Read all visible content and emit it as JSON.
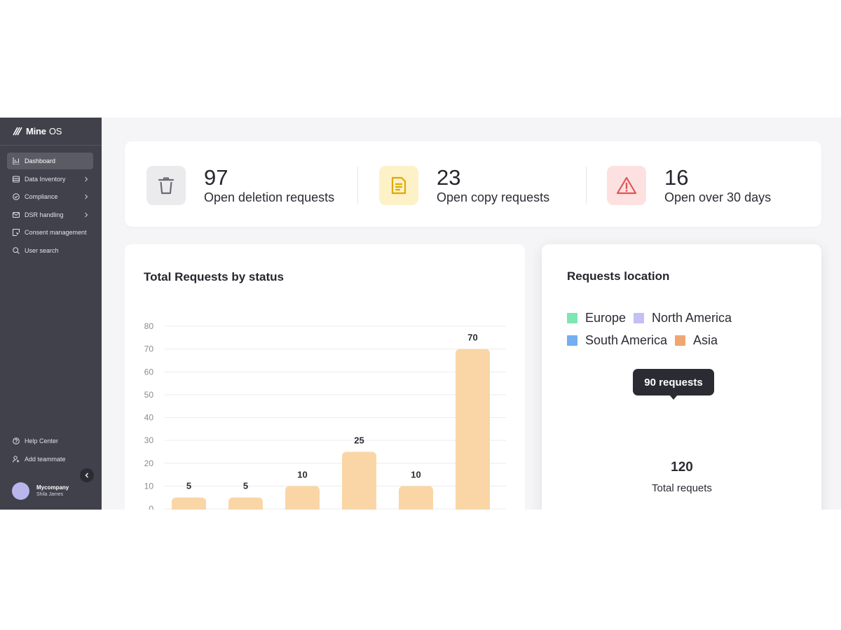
{
  "brand": {
    "name_bold": "Mine",
    "name_light": "OS"
  },
  "sidebar": {
    "items": [
      {
        "label": "Dashboard",
        "icon": "chart-bars-icon",
        "active": true,
        "chevron": false
      },
      {
        "label": "Data Inventory",
        "icon": "database-icon",
        "active": false,
        "chevron": true
      },
      {
        "label": "Compliance",
        "icon": "check-circle-icon",
        "active": false,
        "chevron": true
      },
      {
        "label": "DSR handling",
        "icon": "mail-icon",
        "active": false,
        "chevron": true
      },
      {
        "label": "Consent management",
        "icon": "cursor-box-icon",
        "active": false,
        "chevron": false
      },
      {
        "label": "User search",
        "icon": "search-icon",
        "active": false,
        "chevron": false
      }
    ],
    "bottom_items": [
      {
        "label": "Help Center",
        "icon": "help-circle-icon"
      },
      {
        "label": "Add teammate",
        "icon": "add-user-icon"
      }
    ],
    "user": {
      "company": "Mycompany",
      "name": "Shila James"
    }
  },
  "stats": [
    {
      "value": "97",
      "label": "Open deletion requests",
      "icon": "trash-icon",
      "bg": "#ebebee",
      "fg": "#6a6a74"
    },
    {
      "value": "23",
      "label": "Open copy requests",
      "icon": "document-icon",
      "bg": "#fdf1c8",
      "fg": "#e0a800"
    },
    {
      "value": "16",
      "label": "Open over 30 days",
      "icon": "warning-icon",
      "bg": "#fde1e1",
      "fg": "#e05656"
    }
  ],
  "status_chart": {
    "title": "Total Requests by status",
    "chart_data": {
      "type": "bar",
      "title": "Total Requests by status",
      "values": [
        5,
        5,
        10,
        25,
        10,
        70
      ],
      "data_labels": [
        "5",
        "5",
        "10",
        "25",
        "10",
        "70"
      ],
      "yticks": [
        "0",
        "10",
        "20",
        "30",
        "40",
        "50",
        "60",
        "70",
        "80"
      ],
      "ylim": [
        0,
        80
      ],
      "grid": true,
      "bar_color": "#fad6a6"
    }
  },
  "location_chart": {
    "title": "Requests location",
    "tooltip": "90 requests",
    "center_value": "120",
    "center_label": "Total requets",
    "chart_data": {
      "type": "pie",
      "title": "Requests location",
      "legend": [
        "Europe",
        "North America",
        "South America",
        "Asia"
      ],
      "visible_arc_colors": [
        "#b4ecd5",
        "#9d98ec",
        "#74aef0"
      ],
      "colors": {
        "Europe": "#7ee6b3",
        "North America": "#c2c0f4",
        "South America": "#74aef0",
        "Asia": "#f0a672"
      },
      "total": 120,
      "highlighted_value": 90,
      "highlighted_series": "North America"
    }
  }
}
